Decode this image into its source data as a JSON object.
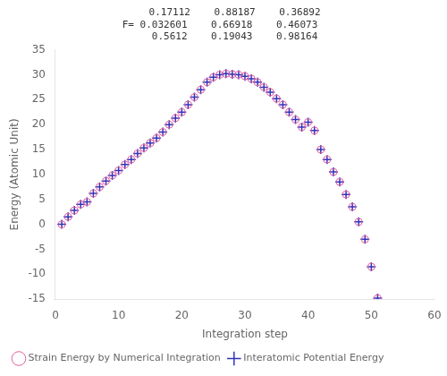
{
  "chart_data": {
    "type": "scatter",
    "title": "     0.17112    0.88187    0.36892\nF= 0.032601    0.66918    0.46073\n     0.5612    0.19043    0.98164",
    "x_label": "Integration step",
    "y_label": "Energy (Atomic Unit)",
    "x": [
      1,
      2,
      3,
      4,
      5,
      6,
      7,
      8,
      9,
      10,
      11,
      12,
      13,
      14,
      15,
      16,
      17,
      18,
      19,
      20,
      21,
      22,
      23,
      24,
      25,
      26,
      27,
      28,
      29,
      30,
      31,
      32,
      33,
      34,
      35,
      36,
      37,
      38,
      39,
      40,
      41,
      42,
      43,
      44,
      45,
      46,
      47,
      48,
      49,
      50,
      51
    ],
    "series": [
      {
        "name": "Strain Energy by Numerical Integration",
        "color": "#e060a0",
        "marker": "circle",
        "values": [
          0.0,
          1.5,
          2.8,
          4.0,
          4.5,
          6.2,
          7.5,
          8.7,
          9.8,
          10.8,
          12.0,
          13.0,
          14.2,
          15.3,
          16.3,
          17.3,
          18.5,
          20.0,
          21.3,
          22.5,
          24.0,
          25.5,
          27.0,
          28.5,
          29.5,
          30.0,
          30.2,
          30.1,
          30.0,
          29.7,
          29.2,
          28.5,
          27.5,
          26.5,
          25.2,
          24.0,
          22.5,
          21.0,
          19.5,
          20.5,
          18.8,
          15.0,
          13.0,
          10.5,
          8.5,
          6.0,
          3.5,
          0.5,
          -3.0,
          -8.5,
          -14.8
        ]
      },
      {
        "name": "Interatomic Potential Energy",
        "color": "#3333bb",
        "marker": "plus",
        "values": [
          0.0,
          1.5,
          2.8,
          4.0,
          4.5,
          6.2,
          7.5,
          8.7,
          9.8,
          10.8,
          12.0,
          13.0,
          14.2,
          15.3,
          16.3,
          17.3,
          18.5,
          20.0,
          21.3,
          22.5,
          24.0,
          25.5,
          27.0,
          28.5,
          29.5,
          30.0,
          30.2,
          30.1,
          30.0,
          29.7,
          29.2,
          28.5,
          27.5,
          26.5,
          25.2,
          24.0,
          22.5,
          21.0,
          19.5,
          20.5,
          18.8,
          15.0,
          13.0,
          10.5,
          8.5,
          6.0,
          3.5,
          0.5,
          -3.0,
          -8.5,
          -14.8
        ]
      }
    ],
    "xlim": [
      0,
      60
    ],
    "ylim": [
      -15,
      35
    ],
    "xticks": [
      0,
      10,
      20,
      30,
      40,
      50,
      60
    ],
    "yticks": [
      -15,
      -10,
      -5,
      0,
      5,
      10,
      15,
      20,
      25,
      30,
      35
    ],
    "grid": false,
    "legend": "lower left"
  }
}
